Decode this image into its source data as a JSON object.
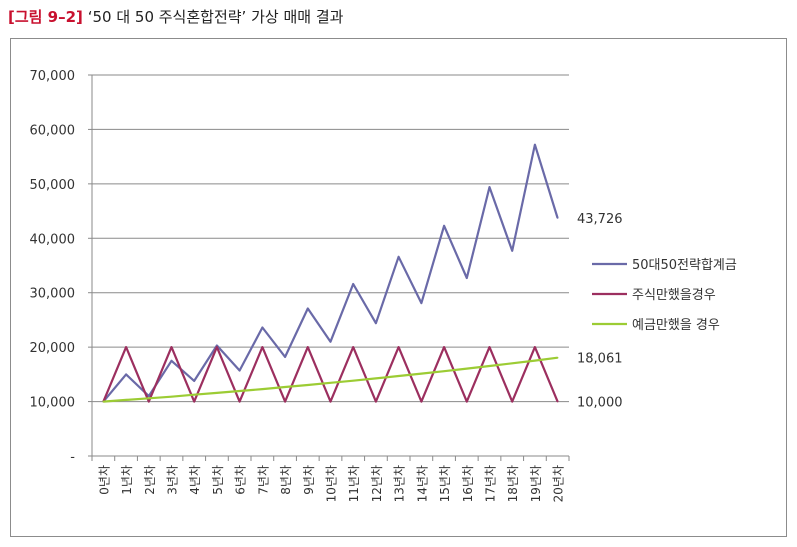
{
  "figure": {
    "tag": "[그림 9–2]",
    "title": "‘50 대 50 주식혼합전략’ 가상 매매 결과"
  },
  "chart_data": {
    "type": "line",
    "categories": [
      "0년차",
      "1년차",
      "2년차",
      "3년차",
      "4년차",
      "5년차",
      "6년차",
      "7년차",
      "8년차",
      "9년차",
      "10년차",
      "11년차",
      "12년차",
      "13년차",
      "14년차",
      "15년차",
      "16년차",
      "17년차",
      "18년차",
      "19년차",
      "20년차"
    ],
    "y_ticks": [
      "-",
      "10,000",
      "20,000",
      "30,000",
      "40,000",
      "50,000",
      "60,000",
      "70,000"
    ],
    "ylim": [
      0,
      70000
    ],
    "grid": true,
    "legend_position": "right",
    "series": [
      {
        "name": "50대50전략합계금",
        "color": "#6a6aa8",
        "values": [
          10000,
          15000,
          11000,
          17500,
          13800,
          20300,
          15700,
          23600,
          18200,
          27100,
          21000,
          31600,
          24400,
          36600,
          28100,
          42300,
          32700,
          49400,
          37700,
          57200,
          43726
        ]
      },
      {
        "name": "주식만했을경우",
        "color": "#9c2f5f",
        "values": [
          10000,
          20000,
          10000,
          20000,
          10000,
          20000,
          10000,
          20000,
          10000,
          20000,
          10000,
          20000,
          10000,
          20000,
          10000,
          20000,
          10000,
          20000,
          10000,
          20000,
          10000
        ]
      },
      {
        "name": "예금만했을 경우",
        "color": "#9ccc34",
        "values": [
          10000,
          10300,
          10600,
          10900,
          11260,
          11590,
          11940,
          12300,
          12670,
          13050,
          13440,
          13840,
          14260,
          14690,
          15130,
          15580,
          16050,
          16530,
          17030,
          17530,
          18061
        ]
      }
    ],
    "end_labels": [
      "43,726",
      "10,000",
      "18,061"
    ]
  }
}
